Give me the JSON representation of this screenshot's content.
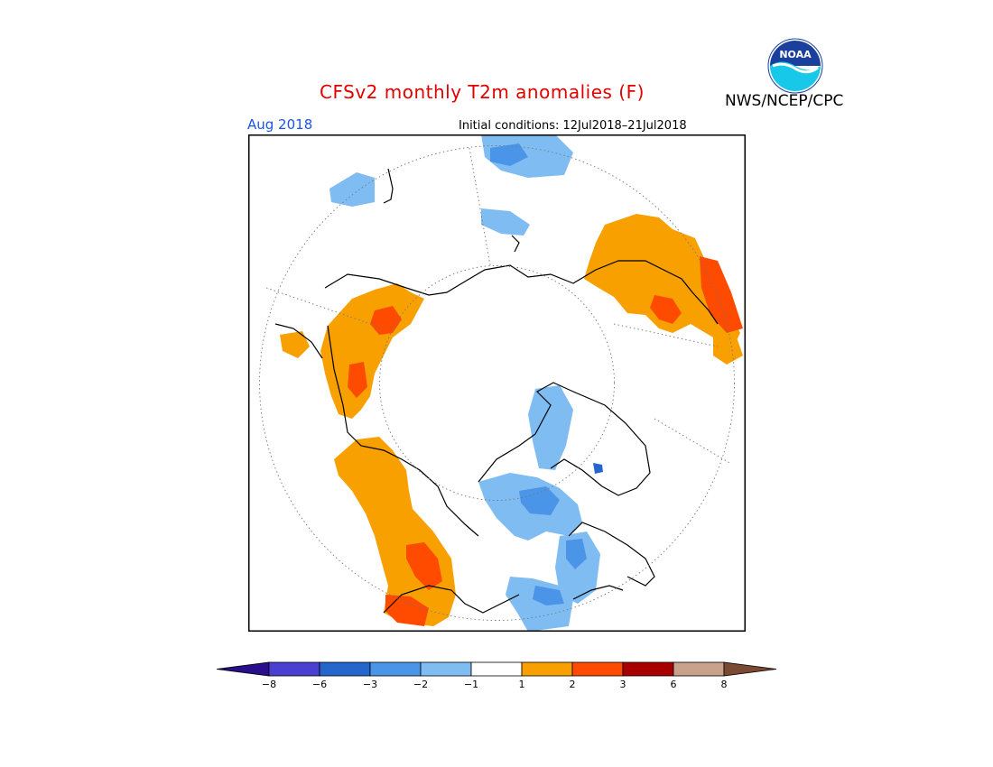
{
  "header": {
    "title": "CFSv2 monthly T2m anomalies (F)",
    "title_color": "#e00000",
    "agency": "NWS/NCEP/CPC",
    "month": "Aug 2018",
    "month_color": "#1a56e0",
    "initial_conditions": "Initial conditions: 12Jul2018–21Jul2018"
  },
  "logo": {
    "icon": "noaa-logo-icon",
    "text": "NOAA"
  },
  "legend": {
    "colors": [
      "#2a0f8c",
      "#4a3fd1",
      "#2566cc",
      "#4a95e8",
      "#7fbcf2",
      "#ffffff",
      "#f7a000",
      "#ff4b00",
      "#a80000",
      "#c9a28c",
      "#7a4a33"
    ],
    "labels": [
      "-8",
      "-6",
      "-3",
      "-2",
      "-1",
      "1",
      "2",
      "3",
      "6",
      "8"
    ]
  },
  "map": {
    "projection": "north-polar-stereographic",
    "colors": {
      "warm1": "#f7a000",
      "warm2": "#ff4b00",
      "cool1": "#7fbcf2",
      "cool2": "#4a95e8",
      "cool3": "#2566cc"
    }
  }
}
